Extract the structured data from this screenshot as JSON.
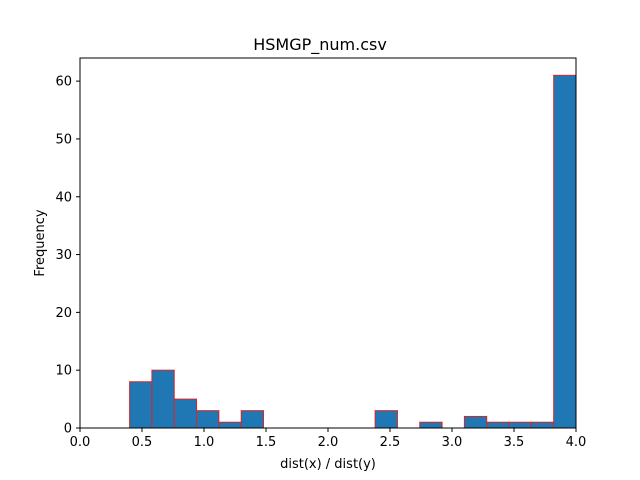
{
  "chart_data": {
    "type": "bar",
    "title": "HSMGP_num.csv",
    "xlabel": "dist(x) / dist(y)",
    "ylabel": "Frequency",
    "xlim": [
      0.0,
      4.0
    ],
    "ylim": [
      0,
      64
    ],
    "xticks": [
      "0.0",
      "0.5",
      "1.0",
      "1.5",
      "2.0",
      "2.5",
      "3.0",
      "3.5",
      "4.0"
    ],
    "yticks": [
      "0",
      "10",
      "20",
      "30",
      "40",
      "50",
      "60"
    ],
    "bins": [
      {
        "x0": 0.4,
        "x1": 0.58,
        "count": 8
      },
      {
        "x0": 0.58,
        "x1": 0.76,
        "count": 10
      },
      {
        "x0": 0.76,
        "x1": 0.94,
        "count": 5
      },
      {
        "x0": 0.94,
        "x1": 1.12,
        "count": 3
      },
      {
        "x0": 1.12,
        "x1": 1.3,
        "count": 1
      },
      {
        "x0": 1.3,
        "x1": 1.48,
        "count": 3
      },
      {
        "x0": 1.48,
        "x1": 1.66,
        "count": 0
      },
      {
        "x0": 1.66,
        "x1": 1.84,
        "count": 0
      },
      {
        "x0": 1.84,
        "x1": 2.02,
        "count": 0
      },
      {
        "x0": 2.02,
        "x1": 2.2,
        "count": 0
      },
      {
        "x0": 2.2,
        "x1": 2.38,
        "count": 0
      },
      {
        "x0": 2.38,
        "x1": 2.56,
        "count": 3
      },
      {
        "x0": 2.56,
        "x1": 2.74,
        "count": 0
      },
      {
        "x0": 2.74,
        "x1": 2.92,
        "count": 1
      },
      {
        "x0": 2.92,
        "x1": 3.1,
        "count": 0
      },
      {
        "x0": 3.1,
        "x1": 3.28,
        "count": 2
      },
      {
        "x0": 3.28,
        "x1": 3.46,
        "count": 1
      },
      {
        "x0": 3.46,
        "x1": 3.64,
        "count": 1
      },
      {
        "x0": 3.64,
        "x1": 3.82,
        "count": 1
      },
      {
        "x0": 3.82,
        "x1": 4.0,
        "count": 61
      }
    ],
    "grid": false,
    "colors": {
      "bar_fill": "#1f77b4",
      "bar_edge": "#d62728"
    }
  }
}
